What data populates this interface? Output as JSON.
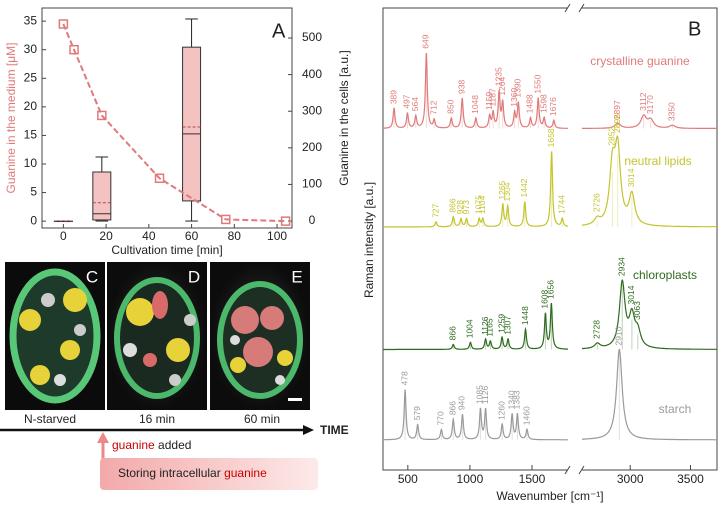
{
  "chart_data": [
    {
      "type": "line_box",
      "panel_label": "A",
      "xlabel": "Cultivation time [min]",
      "ylabel": "Guanine in the medium [μM]",
      "y2label": "Guanine in the cells [a.u.]",
      "xlim": [
        -10,
        107
      ],
      "xticks": [
        0,
        20,
        40,
        60,
        80,
        100
      ],
      "ylim": [
        -1.2,
        37.3
      ],
      "yticks": [
        0,
        5,
        10,
        15,
        20,
        25,
        30,
        35
      ],
      "y2lim": [
        -19,
        582
      ],
      "y2ticks": [
        0,
        100,
        200,
        300,
        400,
        500
      ],
      "series": [
        {
          "color": "#e07a7a",
          "x": [
            0,
            5,
            18,
            45,
            76,
            104
          ],
          "values": [
            34.5,
            30,
            18.5,
            7.5,
            0.3,
            0
          ]
        }
      ],
      "boxes": {
        "axis": "y2",
        "color": "#f5c2c2",
        "mean_color": "#b04848",
        "x": [
          0,
          18,
          60
        ],
        "min": [
          0,
          0,
          0
        ],
        "q1": [
          0,
          3,
          55
        ],
        "median": [
          0,
          20,
          238
        ],
        "mean": [
          0,
          50,
          257
        ],
        "q3": [
          0,
          134,
          475
        ],
        "max": [
          0,
          175,
          552
        ]
      }
    },
    {
      "type": "spectra",
      "panel_label": "B",
      "xlabel": "Wavenumber [cm⁻¹]",
      "ylabel": "Raman intensity [a.u.]",
      "xlim": [
        300,
        3720
      ],
      "x_break": [
        1790,
        2600
      ],
      "xticks": [
        500,
        1000,
        1500,
        3000,
        3500
      ],
      "ylim": [
        0,
        4.6
      ],
      "series": [
        {
          "name": "crystalline guanine",
          "color": "#e07a7a",
          "offset": 3.4,
          "peaks": [
            389,
            497,
            564,
            649,
            712,
            850,
            938,
            1048,
            1159,
            1187,
            1235,
            1264,
            1360,
            1390,
            1488,
            1550,
            1598,
            1676,
            2897,
            3112,
            3170,
            3350
          ],
          "intensities": [
            0.2,
            0.15,
            0.12,
            0.75,
            0.08,
            0.1,
            0.3,
            0.1,
            0.12,
            0.15,
            0.35,
            0.25,
            0.15,
            0.25,
            0.1,
            0.3,
            0.1,
            0.08,
            0.05,
            0.12,
            0.08,
            0.03
          ]
        },
        {
          "name": "neutral lipids",
          "color": "#c4c42e",
          "offset": 2.42,
          "peaks": [
            727,
            866,
            928,
            973,
            1075,
            1104,
            1265,
            1304,
            1442,
            1658,
            1744,
            2726,
            2852,
            2896,
            3014
          ],
          "intensities": [
            0.05,
            0.1,
            0.08,
            0.08,
            0.08,
            0.08,
            0.22,
            0.2,
            0.25,
            0.75,
            0.08,
            0.06,
            0.55,
            0.72,
            0.3
          ]
        },
        {
          "name": "chloroplasts",
          "color": "#2e6b1e",
          "offset": 1.2,
          "peaks": [
            866,
            1004,
            1126,
            1165,
            1259,
            1307,
            1448,
            1608,
            1656,
            2728,
            2934,
            3014,
            3063
          ],
          "intensities": [
            0.05,
            0.07,
            0.1,
            0.08,
            0.12,
            0.1,
            0.2,
            0.35,
            0.45,
            0.05,
            0.65,
            0.3,
            0.15
          ]
        },
        {
          "name": "starch",
          "color": "#9a9a9a",
          "offset": 0.3,
          "peaks": [
            478,
            579,
            770,
            866,
            940,
            1085,
            1126,
            1260,
            1340,
            1383,
            1460,
            2910
          ],
          "intensities": [
            0.5,
            0.15,
            0.1,
            0.2,
            0.25,
            0.3,
            0.3,
            0.15,
            0.25,
            0.25,
            0.1,
            0.9
          ]
        }
      ]
    }
  ],
  "micrographs": {
    "panels": [
      "C",
      "D",
      "E"
    ],
    "times": [
      "N-starved",
      "16 min",
      "60 min"
    ],
    "axis_label": "TIME",
    "event": [
      "guanine",
      " added"
    ],
    "process": [
      "Storing intracellular ",
      "guanine"
    ]
  }
}
